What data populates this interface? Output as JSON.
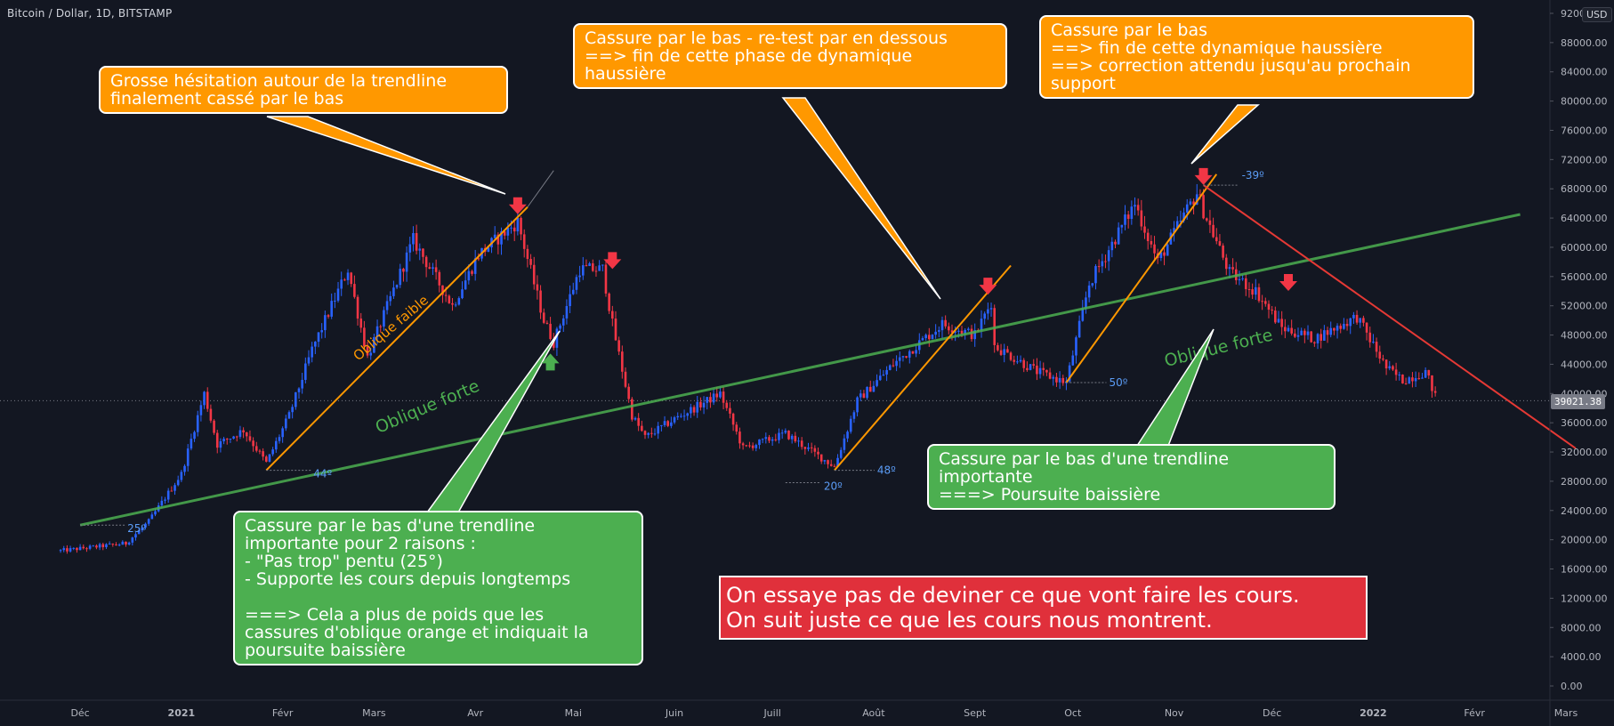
{
  "header": {
    "symbol": "Bitcoin / Dollar, 1D, BITSTAMP",
    "currency": "USD"
  },
  "chart_data": {
    "type": "candlestick",
    "y_axis": {
      "ticks": [
        "92000.00",
        "88000.00",
        "84000.00",
        "80000.00",
        "76000.00",
        "72000.00",
        "68000.00",
        "64000.00",
        "60000.00",
        "56000.00",
        "52000.00",
        "48000.00",
        "44000.00",
        "40000.00",
        "36000.00",
        "32000.00",
        "28000.00",
        "24000.00",
        "20000.00",
        "16000.00",
        "12000.00",
        "8000.00",
        "4000.00",
        "0.00"
      ],
      "range": [
        0,
        92000
      ]
    },
    "x_axis": {
      "ticks": [
        "Déc",
        "2021",
        "Févr",
        "Mars",
        "Avr",
        "Mai",
        "Juin",
        "Juill",
        "Août",
        "Sept",
        "Oct",
        "Nov",
        "Déc",
        "2022",
        "Févr",
        "Mars"
      ]
    },
    "last_price": "39021.38",
    "price_path": [
      [
        "2020-11-25",
        18500
      ],
      [
        "2020-12-05",
        19000
      ],
      [
        "2020-12-15",
        19500
      ],
      [
        "2020-12-22",
        22500
      ],
      [
        "2021-01-01",
        29000
      ],
      [
        "2021-01-08",
        40000
      ],
      [
        "2021-01-12",
        33000
      ],
      [
        "2021-01-20",
        35000
      ],
      [
        "2021-01-27",
        30500
      ],
      [
        "2021-02-03",
        37000
      ],
      [
        "2021-02-10",
        46000
      ],
      [
        "2021-02-21",
        57000
      ],
      [
        "2021-02-27",
        45000
      ],
      [
        "2021-03-13",
        61000
      ],
      [
        "2021-03-25",
        52000
      ],
      [
        "2021-04-02",
        59000
      ],
      [
        "2021-04-14",
        63500
      ],
      [
        "2021-04-22",
        50000
      ],
      [
        "2021-04-25",
        47000
      ],
      [
        "2021-05-03",
        57000
      ],
      [
        "2021-05-10",
        57000
      ],
      [
        "2021-05-13",
        49500
      ],
      [
        "2021-05-19",
        37000
      ],
      [
        "2021-05-23",
        34000
      ],
      [
        "2021-06-01",
        36500
      ],
      [
        "2021-06-15",
        40000
      ],
      [
        "2021-06-22",
        32500
      ],
      [
        "2021-07-05",
        34500
      ],
      [
        "2021-07-20",
        30000
      ],
      [
        "2021-07-27",
        39000
      ],
      [
        "2021-08-07",
        44000
      ],
      [
        "2021-08-22",
        49500
      ],
      [
        "2021-09-01",
        48000
      ],
      [
        "2021-09-06",
        52500
      ],
      [
        "2021-09-07",
        46500
      ],
      [
        "2021-09-20",
        43000
      ],
      [
        "2021-09-29",
        41500
      ],
      [
        "2021-10-06",
        55000
      ],
      [
        "2021-10-20",
        66000
      ],
      [
        "2021-10-27",
        58000
      ],
      [
        "2021-11-08",
        67500
      ],
      [
        "2021-11-10",
        65000
      ],
      [
        "2021-11-18",
        56500
      ],
      [
        "2021-11-26",
        54000
      ],
      [
        "2021-12-04",
        49000
      ],
      [
        "2021-12-14",
        47500
      ],
      [
        "2021-12-27",
        50500
      ],
      [
        "2022-01-05",
        43500
      ],
      [
        "2022-01-10",
        41800
      ],
      [
        "2022-01-17",
        43000
      ],
      [
        "2022-01-21",
        38500
      ]
    ],
    "trendlines": [
      {
        "name": "Oblique forte",
        "color": "#4caf50",
        "from": [
          "2020-12-01",
          22000
        ],
        "to": [
          "2022-02-15",
          64500
        ]
      },
      {
        "name": "Oblique faible",
        "color": "#ff9800",
        "from": [
          "2021-01-27",
          29500
        ],
        "to": [
          "2021-04-17",
          65500
        ]
      },
      {
        "name": "",
        "color": "#ff9800",
        "from": [
          "2021-07-20",
          29500
        ],
        "to": [
          "2021-09-12",
          57500
        ]
      },
      {
        "name": "",
        "color": "#ff9800",
        "from": [
          "2021-09-29",
          41500
        ],
        "to": [
          "2021-11-14",
          70000
        ]
      },
      {
        "name": "",
        "color": "#e53935",
        "from": [
          "2021-11-10",
          68500
        ],
        "to": [
          "2022-03-04",
          32500
        ]
      }
    ],
    "angle_labels": [
      "25º",
      "44º",
      "20º",
      "48º",
      "50º",
      "-39º"
    ],
    "trend_labels": [
      "Oblique faible",
      "Oblique forte",
      "Oblique forte"
    ],
    "signals": [
      {
        "date": "2021-04-14",
        "price": 65500,
        "direction": "down"
      },
      {
        "date": "2021-04-24",
        "price": 44500,
        "direction": "up"
      },
      {
        "date": "2021-05-13",
        "price": 58000,
        "direction": "down"
      },
      {
        "date": "2021-09-05",
        "price": 54500,
        "direction": "down"
      },
      {
        "date": "2021-11-10",
        "price": 69500,
        "direction": "down"
      },
      {
        "date": "2021-12-06",
        "price": 55000,
        "direction": "down"
      }
    ]
  },
  "annotations": {
    "callout_1": "Grosse hésitation autour de la trendline\nfinalement cassé par le bas",
    "callout_2": "Cassure par le bas -  re-test par en dessous\n==> fin de cette phase de dynamique\nhaussière",
    "callout_3": "Cassure par le bas\n==> fin de cette dynamique haussière\n==> correction attendu jusqu'au prochain\nsupport",
    "callout_4": "Cassure par le bas d'une trendline\nimportante pour 2 raisons :\n- \"Pas trop\" pentu (25°)\n- Supporte les cours depuis longtemps\n\n===> Cela a plus de poids que les\ncassures d'oblique orange et indiquait la\npoursuite baissière",
    "callout_5": "Cassure par le bas d'une trendline\nimportante\n===> Poursuite baissière",
    "callout_6": "On essaye pas de deviner ce que vont faire les cours.\nOn suit juste ce que les cours nous montrent."
  },
  "colors": {
    "background": "#131722",
    "up_candle": "#2962ff",
    "down_candle": "#f23645",
    "strong_trend": "#4caf50",
    "weak_trend": "#ff9800",
    "bear_trend": "#e53935",
    "callout_orange": "#ff9800",
    "callout_green": "#4caf50",
    "callout_red": "#e0303b"
  }
}
